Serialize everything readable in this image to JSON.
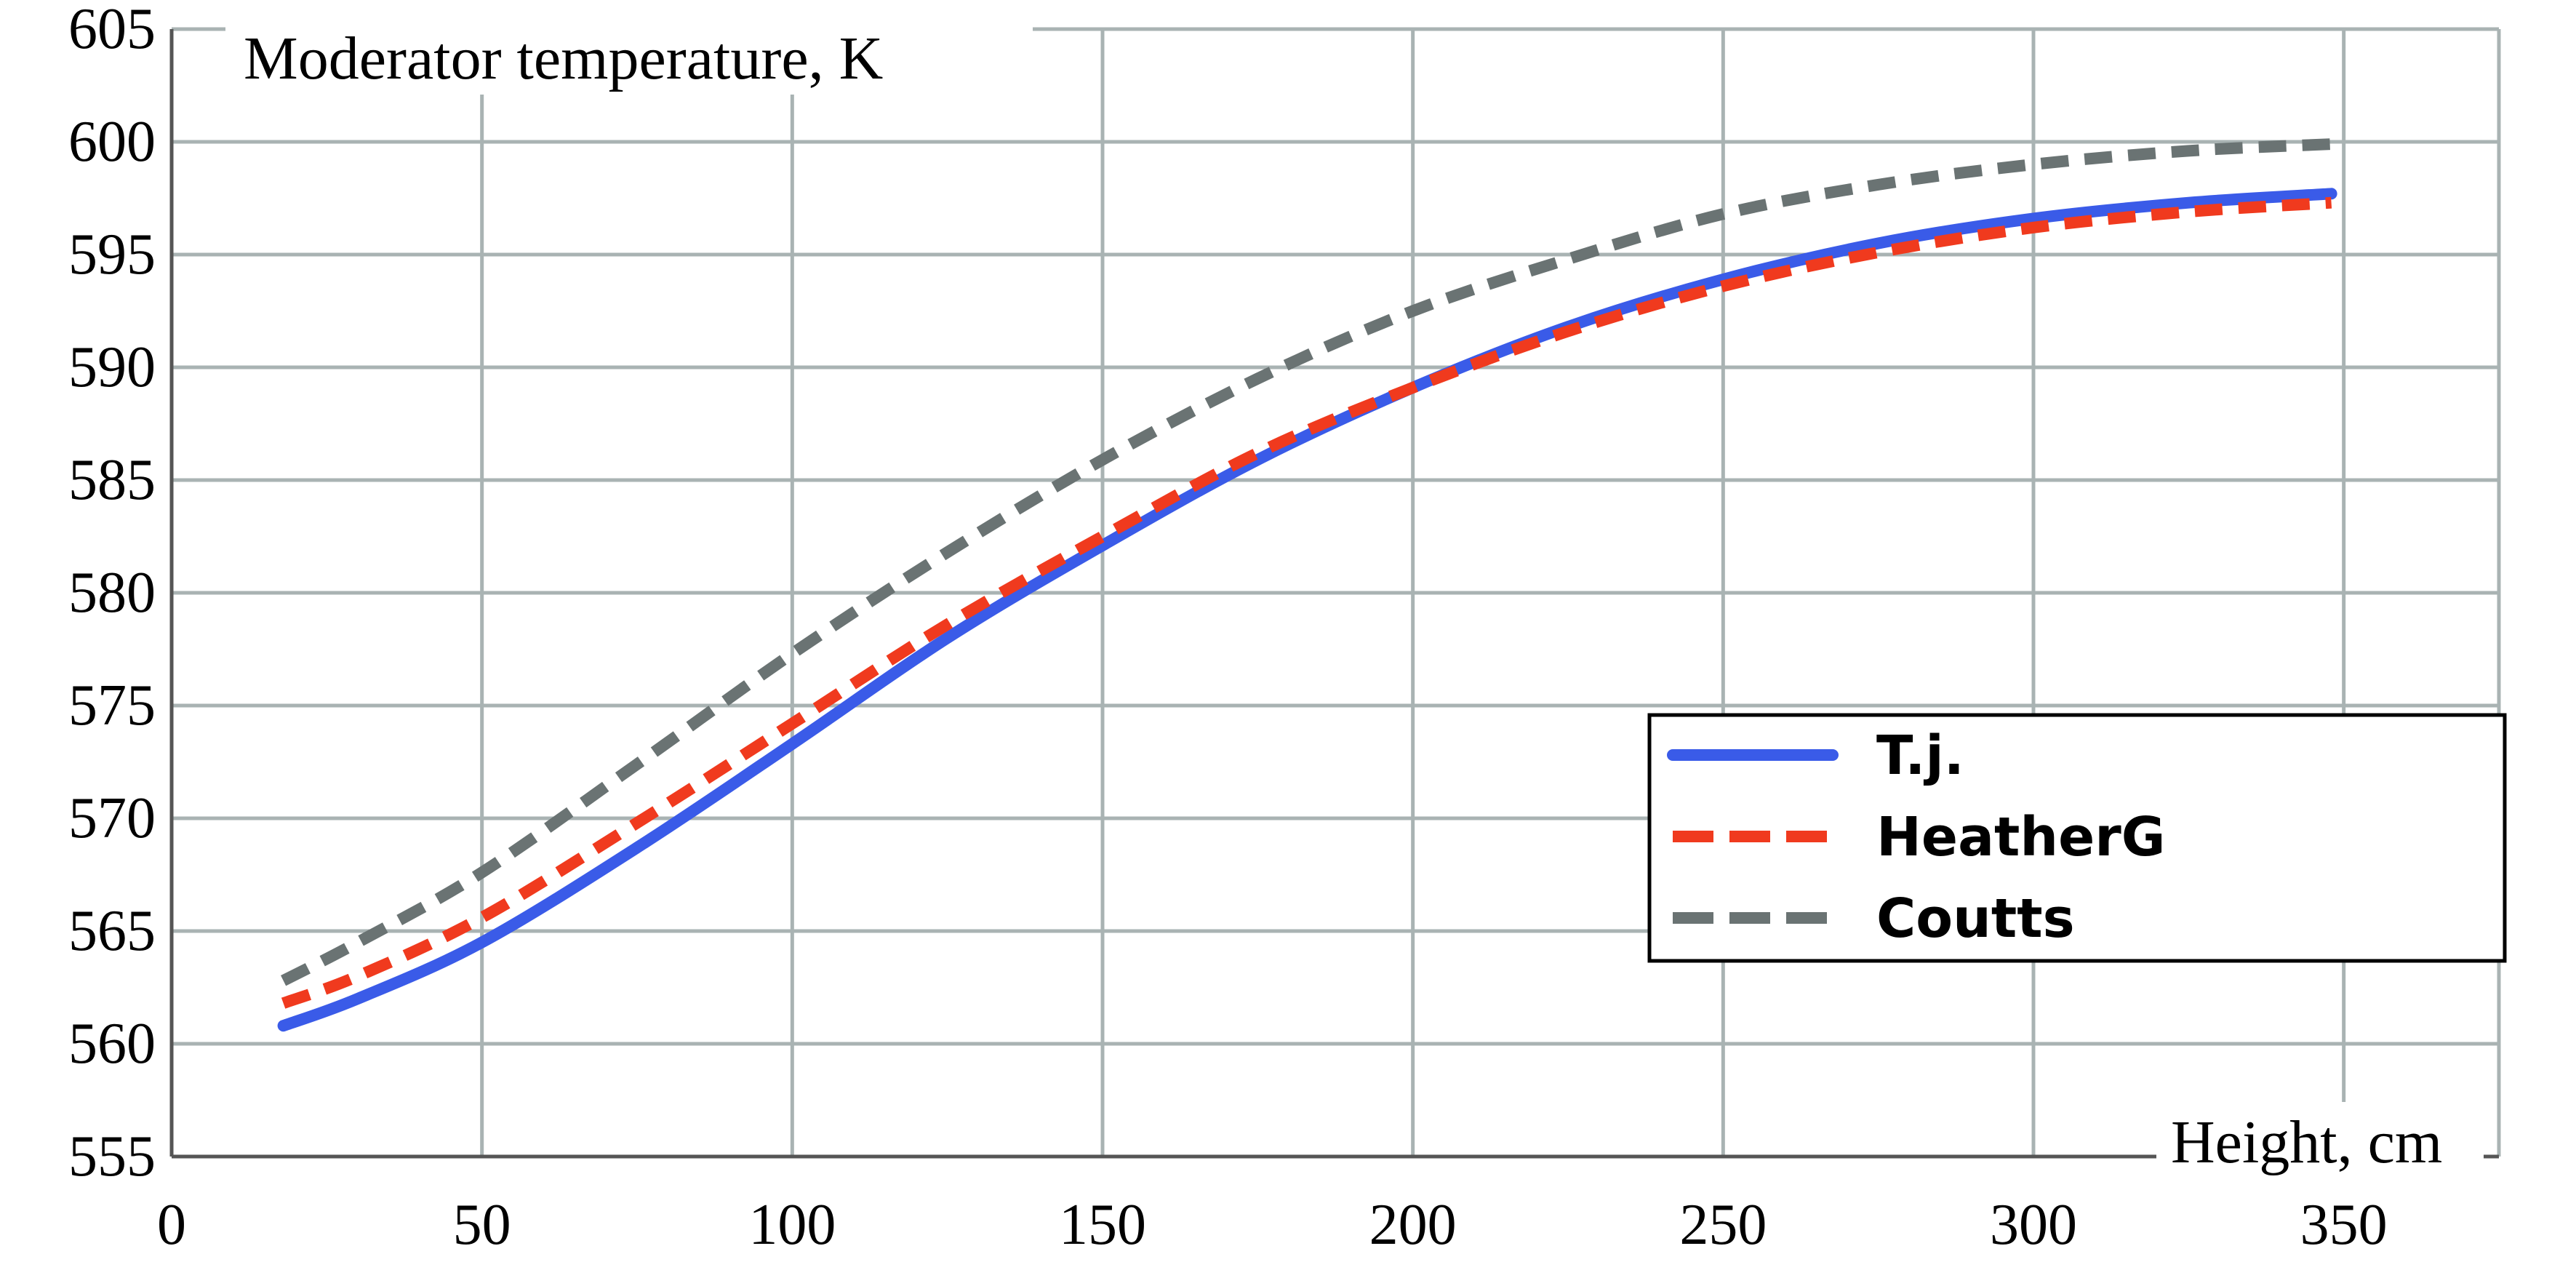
{
  "chart_data": {
    "type": "line",
    "ylabel": "Moderator temperature, K",
    "xlabel": "Height, cm",
    "xlim": [
      0,
      375
    ],
    "ylim": [
      555,
      605
    ],
    "xticks": [
      0,
      50,
      100,
      150,
      200,
      250,
      300,
      350
    ],
    "yticks": [
      555,
      560,
      565,
      570,
      575,
      580,
      585,
      590,
      595,
      600,
      605
    ],
    "grid": true,
    "legend_position": "right",
    "series": [
      {
        "name": "T.j.",
        "color": "#3a5be8",
        "style": "solid",
        "x": [
          18,
          30,
          50,
          75,
          100,
          125,
          150,
          175,
          200,
          225,
          250,
          275,
          300,
          325,
          348
        ],
        "y": [
          560.8,
          562.0,
          564.5,
          568.7,
          573.3,
          578.0,
          582.1,
          585.9,
          589.1,
          591.8,
          593.9,
          595.5,
          596.6,
          597.3,
          597.7
        ]
      },
      {
        "name": "HeatherG",
        "color": "#f03a1e",
        "style": "dashed",
        "x": [
          18,
          30,
          50,
          75,
          100,
          125,
          150,
          175,
          200,
          225,
          250,
          275,
          300,
          325,
          348
        ],
        "y": [
          561.8,
          563.0,
          565.6,
          569.8,
          574.2,
          578.6,
          582.5,
          586.2,
          589.1,
          591.6,
          593.6,
          595.1,
          596.2,
          596.9,
          597.3
        ]
      },
      {
        "name": "Coutts",
        "color": "#6a7373",
        "style": "dashed",
        "x": [
          18,
          30,
          50,
          75,
          100,
          125,
          150,
          175,
          200,
          225,
          250,
          275,
          300,
          325,
          348
        ],
        "y": [
          562.8,
          564.5,
          567.6,
          572.4,
          577.3,
          581.8,
          585.9,
          589.5,
          592.5,
          594.8,
          596.8,
          598.1,
          599.0,
          599.6,
          599.9
        ]
      }
    ]
  }
}
